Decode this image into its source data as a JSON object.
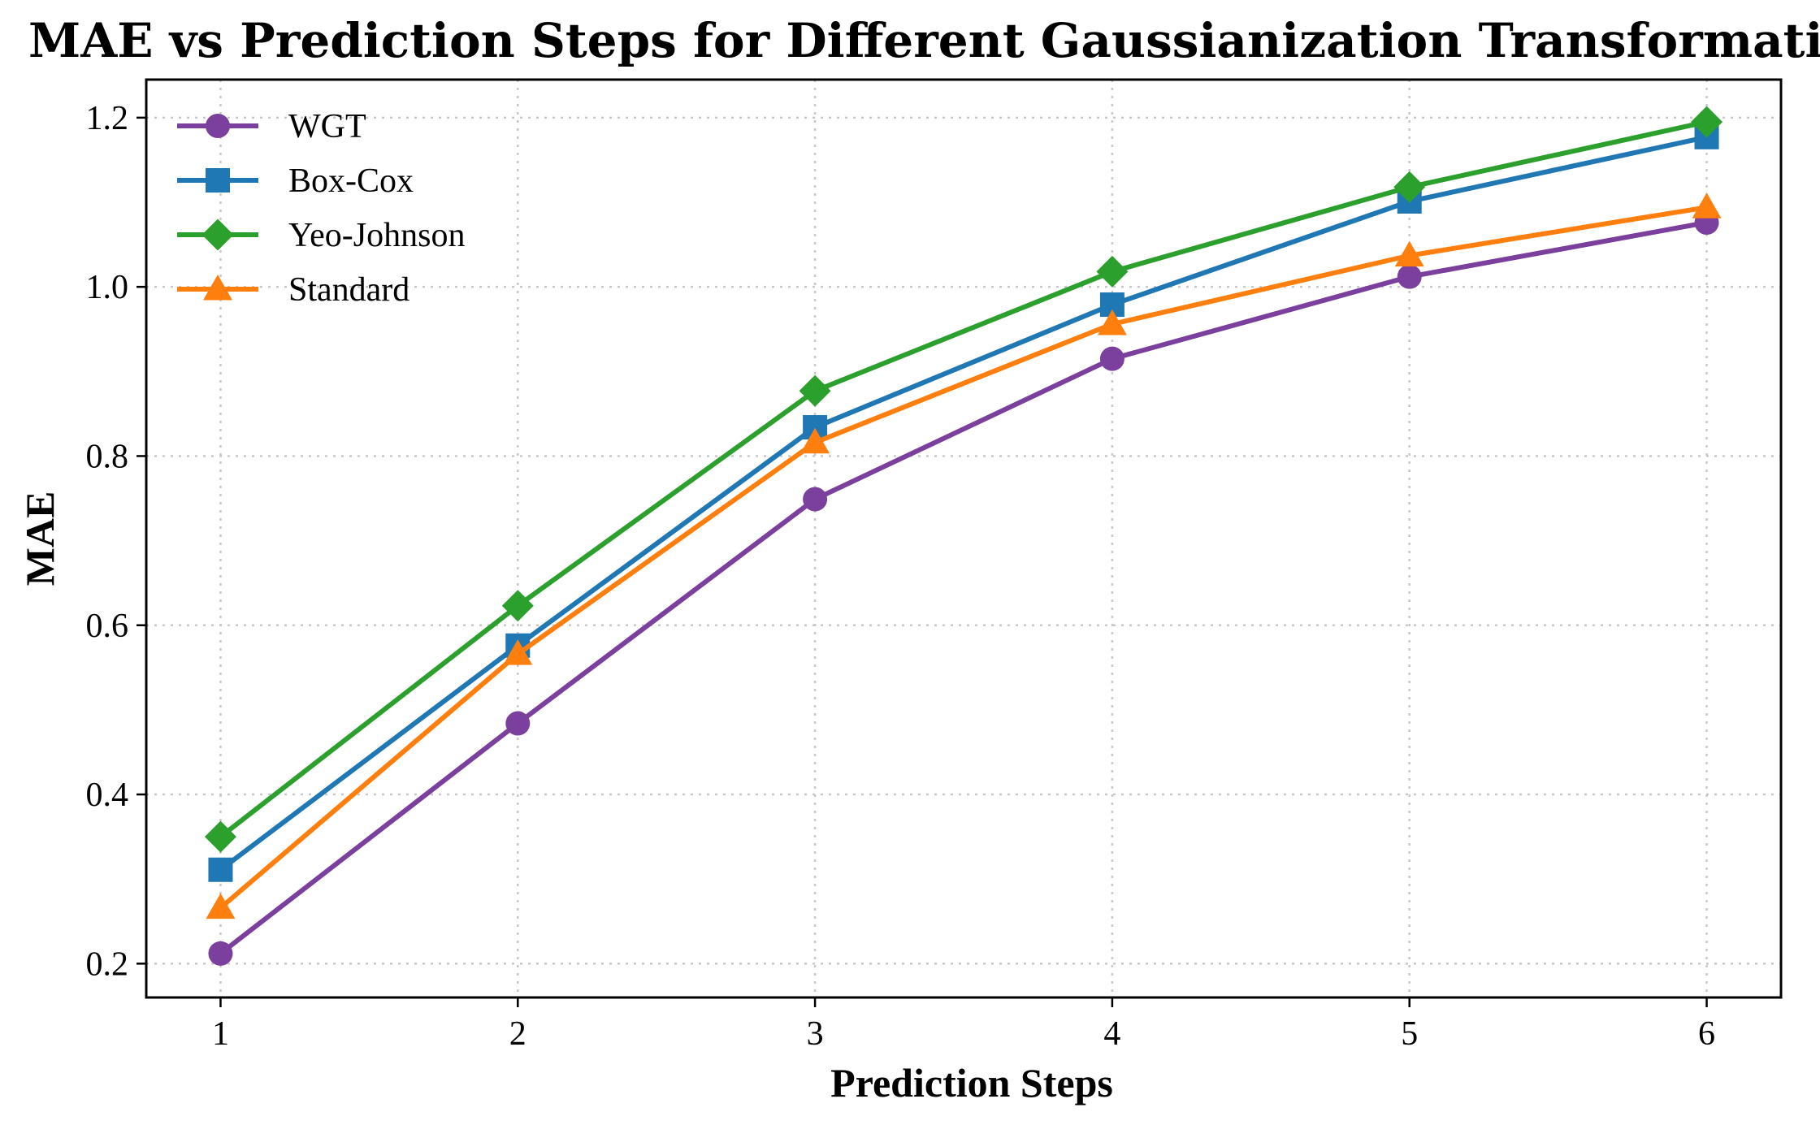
{
  "chart_data": {
    "type": "line",
    "title": "MAE vs Prediction Steps for Different Gaussianization Transformations",
    "xlabel": "Prediction Steps",
    "ylabel": "MAE",
    "x": [
      1,
      2,
      3,
      4,
      5,
      6
    ],
    "xticks": [
      "1",
      "2",
      "3",
      "4",
      "5",
      "6"
    ],
    "xlim": [
      0.75,
      6.25
    ],
    "yticks": [
      "0.2",
      "0.4",
      "0.6",
      "0.8",
      "1.0",
      "1.2"
    ],
    "ylim": [
      0.16,
      1.245
    ],
    "grid": true,
    "legend_position": "top-left",
    "series": [
      {
        "name": "WGT",
        "color": "#7b3f9e",
        "marker": "circle",
        "values": [
          0.212,
          0.484,
          0.749,
          0.915,
          1.012,
          1.076
        ]
      },
      {
        "name": "Box-Cox",
        "color": "#1f77b4",
        "marker": "square",
        "values": [
          0.311,
          0.576,
          0.834,
          0.979,
          1.101,
          1.177
        ]
      },
      {
        "name": "Yeo-Johnson",
        "color": "#2ca02c",
        "marker": "diamond",
        "values": [
          0.35,
          0.623,
          0.877,
          1.018,
          1.118,
          1.195
        ]
      },
      {
        "name": "Standard",
        "color": "#ff7f0e",
        "marker": "triangle",
        "values": [
          0.266,
          0.566,
          0.816,
          0.956,
          1.037,
          1.094
        ]
      }
    ]
  }
}
